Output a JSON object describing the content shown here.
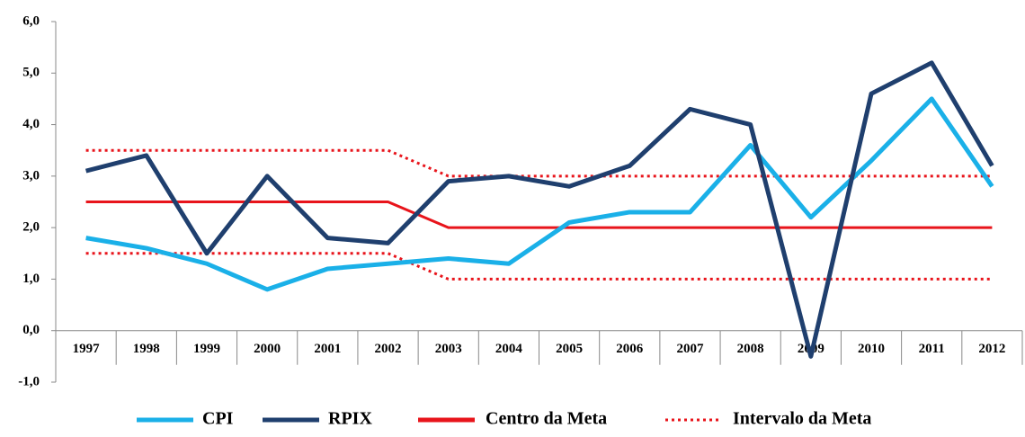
{
  "chart_data": {
    "type": "line",
    "categories": [
      "1997",
      "1998",
      "1999",
      "2000",
      "2001",
      "2002",
      "2003",
      "2004",
      "2005",
      "2006",
      "2007",
      "2008",
      "2009",
      "2010",
      "2011",
      "2012"
    ],
    "series": [
      {
        "name": "CPI",
        "color": "#1ab0e8",
        "style": "solid",
        "values": [
          1.8,
          1.6,
          1.3,
          0.8,
          1.2,
          1.3,
          1.4,
          1.3,
          2.1,
          2.3,
          2.3,
          3.6,
          2.2,
          3.3,
          4.5,
          2.8
        ]
      },
      {
        "name": "RPIX",
        "color": "#1f3f6e",
        "style": "solid",
        "values": [
          3.1,
          3.4,
          1.5,
          3.0,
          1.8,
          1.7,
          2.9,
          3.0,
          2.8,
          3.2,
          4.3,
          4.0,
          -0.5,
          4.6,
          5.2,
          3.2
        ]
      },
      {
        "name": "Centro da Meta",
        "color": "#e8141b",
        "style": "solid",
        "values": [
          2.5,
          2.5,
          2.5,
          2.5,
          2.5,
          2.5,
          2.0,
          2.0,
          2.0,
          2.0,
          2.0,
          2.0,
          2.0,
          2.0,
          2.0,
          2.0
        ]
      },
      {
        "name": "Intervalo da Meta",
        "color": "#e8141b",
        "style": "dotted",
        "values": [
          3.5,
          3.5,
          3.5,
          3.5,
          3.5,
          3.5,
          3.0,
          3.0,
          3.0,
          3.0,
          3.0,
          3.0,
          3.0,
          3.0,
          3.0,
          3.0
        ],
        "lower_values": [
          1.5,
          1.5,
          1.5,
          1.5,
          1.5,
          1.5,
          1.0,
          1.0,
          1.0,
          1.0,
          1.0,
          1.0,
          1.0,
          1.0,
          1.0,
          1.0
        ]
      }
    ],
    "ylim": [
      -1,
      6
    ],
    "yticks": [
      {
        "value": -1,
        "label": "-1,0"
      },
      {
        "value": 0,
        "label": "0,0"
      },
      {
        "value": 1,
        "label": "1,0"
      },
      {
        "value": 2,
        "label": "2,0"
      },
      {
        "value": 3,
        "label": "3,0"
      },
      {
        "value": 4,
        "label": "4,0"
      },
      {
        "value": 5,
        "label": "5,0"
      },
      {
        "value": 6,
        "label": "6,0"
      }
    ],
    "grid": false,
    "legend": "bottom"
  }
}
